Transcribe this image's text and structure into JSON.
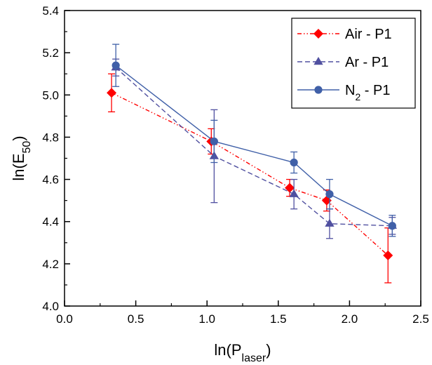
{
  "chart_data": {
    "type": "line",
    "xlabel": {
      "main": "ln(P",
      "sub": "laser",
      "close": ")"
    },
    "ylabel": {
      "main": "ln(E",
      "sub": "50",
      "close": ")"
    },
    "xlim": [
      0.0,
      2.5
    ],
    "ylim": [
      4.0,
      5.4
    ],
    "xticks": [
      "0.0",
      "0.5",
      "1.0",
      "1.5",
      "2.0",
      "2.5"
    ],
    "yticks": [
      "4.0",
      "4.2",
      "4.4",
      "4.6",
      "4.8",
      "5.0",
      "5.2",
      "5.4"
    ],
    "grid": false,
    "legend_position": "top-right",
    "series": [
      {
        "name": "Air - P1",
        "legend": {
          "main": "Air - P1"
        },
        "color": "#ff0000",
        "marker": "diamond",
        "line_style": "dash-dot-dot",
        "x": [
          0.33,
          1.03,
          1.58,
          1.84,
          2.27
        ],
        "y": [
          5.01,
          4.78,
          4.56,
          4.5,
          4.24
        ],
        "err": [
          0.09,
          0.06,
          0.04,
          0.05,
          0.13
        ]
      },
      {
        "name": "Ar - P1",
        "legend": {
          "main": "Ar - P1"
        },
        "color": "#5050a0",
        "marker": "triangle",
        "line_style": "dashed",
        "x": [
          0.36,
          1.05,
          1.61,
          1.86,
          2.3
        ],
        "y": [
          5.13,
          4.71,
          4.53,
          4.39,
          4.38
        ],
        "err": [
          0.04,
          0.22,
          0.07,
          0.07,
          0.04
        ]
      },
      {
        "name": "N2 - P1",
        "legend": {
          "main": "N",
          "sub": "2",
          "rest": " - P1"
        },
        "color": "#4060a8",
        "marker": "circle",
        "line_style": "solid",
        "x": [
          0.36,
          1.05,
          1.61,
          1.86,
          2.3
        ],
        "y": [
          5.14,
          4.78,
          4.68,
          4.53,
          4.38
        ],
        "err": [
          0.1,
          0.1,
          0.05,
          0.07,
          0.05
        ]
      }
    ]
  }
}
